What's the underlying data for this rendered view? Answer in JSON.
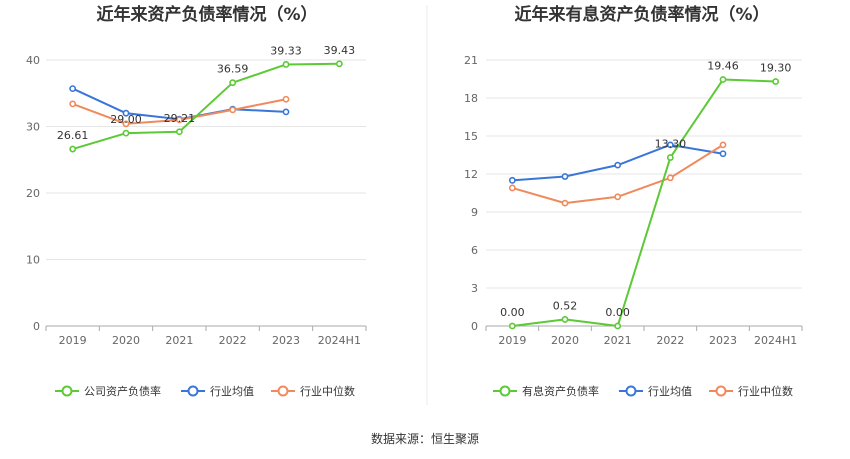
{
  "chart_data": [
    {
      "type": "line",
      "title": "近年来资产负债率情况（%）",
      "categories": [
        "2019",
        "2020",
        "2021",
        "2022",
        "2023",
        "2024H1"
      ],
      "ylim": [
        0,
        40
      ],
      "yticks": [
        0,
        10,
        20,
        30,
        40
      ],
      "series": [
        {
          "name": "公司资产负债率",
          "color": "#5cc936",
          "values": [
            26.61,
            29.0,
            29.21,
            36.59,
            39.33,
            39.43
          ],
          "labels": [
            "26.61",
            "29.00",
            "29.21",
            "36.59",
            "39.33",
            "39.43"
          ]
        },
        {
          "name": "行业均值",
          "color": "#3a76d8",
          "values": [
            35.7,
            32.0,
            31.1,
            32.6,
            32.2,
            null
          ]
        },
        {
          "name": "行业中位数",
          "color": "#f08a5d",
          "values": [
            33.4,
            30.4,
            31.0,
            32.5,
            34.1,
            null
          ]
        }
      ]
    },
    {
      "type": "line",
      "title": "近年来有息资产负债率情况（%）",
      "categories": [
        "2019",
        "2020",
        "2021",
        "2022",
        "2023",
        "2024H1"
      ],
      "ylim": [
        0,
        21
      ],
      "yticks": [
        0,
        3,
        6,
        9,
        12,
        15,
        18,
        21
      ],
      "series": [
        {
          "name": "有息资产负债率",
          "color": "#5cc936",
          "values": [
            0.0,
            0.52,
            0.0,
            13.3,
            19.46,
            19.3
          ],
          "labels": [
            "0.00",
            "0.52",
            "0.00",
            "13.30",
            "19.46",
            "19.30"
          ]
        },
        {
          "name": "行业均值",
          "color": "#3a76d8",
          "values": [
            11.5,
            11.8,
            12.7,
            14.3,
            13.6,
            null
          ]
        },
        {
          "name": "行业中位数",
          "color": "#f08a5d",
          "values": [
            10.9,
            9.7,
            10.2,
            11.7,
            14.3,
            null
          ]
        }
      ]
    }
  ],
  "source": "数据来源：恒生聚源"
}
